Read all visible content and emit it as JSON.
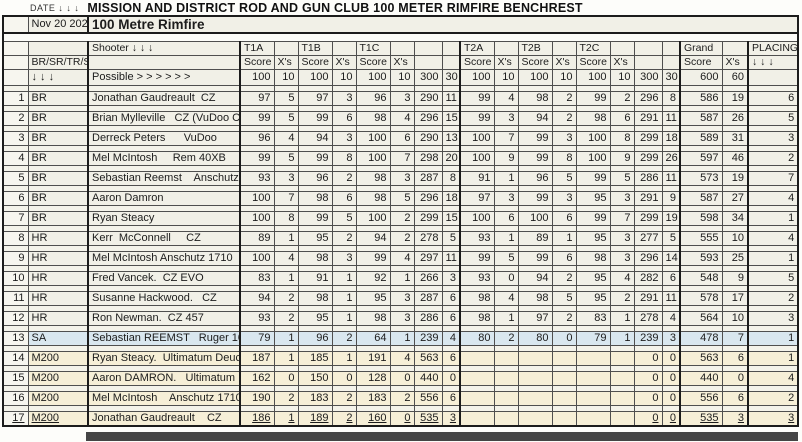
{
  "page": {
    "date_label": "DATE ↓ ↓ ↓",
    "title": "MISSION AND DISTRICT ROD AND GUN CLUB 100 METER RIMFIRE BENCHREST"
  },
  "colors": {
    "row_default": "#f1f0e7",
    "row_sa": "#d9e7ef",
    "row_m200": "#f6efd7",
    "border_dark": "#1c1c1c",
    "bar": "#454545"
  },
  "table": {
    "sheet_date": "Nov 20 2022",
    "sheet_title": "100 Metre Rimfire",
    "header": {
      "shooter_label": "Shooter ↓ ↓ ↓",
      "class_label": "BR/SR/TR/SA",
      "class_arrows": "↓ ↓ ↓",
      "score_label": "Score",
      "xs_label": "X's",
      "groups": [
        "T1A",
        "T1B",
        "T1C",
        "T2A",
        "T2B",
        "T2C"
      ],
      "grand_label": "Grand",
      "placing_label": "PLACING",
      "placing_arrows": "↓ ↓ ↓"
    },
    "possible": {
      "label": "Possible > > > > > >",
      "values": [
        100,
        10,
        100,
        10,
        100,
        10,
        300,
        30,
        100,
        10,
        100,
        10,
        100,
        10,
        300,
        30,
        600,
        60
      ]
    },
    "rows": [
      {
        "num": 1,
        "class": "BR",
        "shooter": "Jonathan Gaudreault  CZ",
        "values": [
          97,
          5,
          97,
          3,
          96,
          3,
          290,
          11,
          99,
          4,
          98,
          2,
          99,
          2,
          296,
          8,
          586,
          19,
          6
        ],
        "tint": "a",
        "underline": false
      },
      {
        "num": 2,
        "class": "BR",
        "shooter": "Brian Mylleville   CZ (VuDoo Clone)",
        "values": [
          99,
          5,
          99,
          6,
          98,
          4,
          296,
          15,
          99,
          3,
          94,
          2,
          98,
          6,
          291,
          11,
          587,
          26,
          5
        ],
        "tint": "a",
        "underline": false
      },
      {
        "num": 3,
        "class": "BR",
        "shooter": "Derreck Peters      VuDoo",
        "values": [
          96,
          4,
          94,
          3,
          100,
          6,
          290,
          13,
          100,
          7,
          99,
          3,
          100,
          8,
          299,
          18,
          589,
          31,
          3
        ],
        "tint": "a",
        "underline": false
      },
      {
        "num": 4,
        "class": "BR",
        "shooter": "Mel McIntosh     Rem 40XB",
        "values": [
          99,
          5,
          99,
          8,
          100,
          7,
          298,
          20,
          100,
          9,
          99,
          8,
          100,
          9,
          299,
          26,
          597,
          46,
          2
        ],
        "tint": "a",
        "underline": false
      },
      {
        "num": 5,
        "class": "BR",
        "shooter": "Sebastian Reemst    Anschutz",
        "values": [
          93,
          3,
          96,
          2,
          98,
          3,
          287,
          8,
          91,
          1,
          96,
          5,
          99,
          5,
          286,
          11,
          573,
          19,
          7
        ],
        "tint": "a",
        "underline": false
      },
      {
        "num": 6,
        "class": "BR",
        "shooter": "Aaron Damron",
        "values": [
          100,
          7,
          98,
          6,
          98,
          5,
          296,
          18,
          97,
          3,
          99,
          3,
          95,
          3,
          291,
          9,
          587,
          27,
          4
        ],
        "tint": "a",
        "underline": false
      },
      {
        "num": 7,
        "class": "BR",
        "shooter": "Ryan Steacy",
        "values": [
          100,
          8,
          99,
          5,
          100,
          2,
          299,
          15,
          100,
          6,
          100,
          6,
          99,
          7,
          299,
          19,
          598,
          34,
          1
        ],
        "tint": "a",
        "underline": false
      },
      {
        "num": 8,
        "class": "HR",
        "shooter": "Kerr  McConnell     CZ",
        "values": [
          89,
          1,
          95,
          2,
          94,
          2,
          278,
          5,
          93,
          1,
          89,
          1,
          95,
          3,
          277,
          5,
          555,
          10,
          4
        ],
        "tint": "a",
        "underline": false
      },
      {
        "num": 9,
        "class": "HR",
        "shooter": "Mel McIntosh Anschutz 1710",
        "values": [
          100,
          4,
          98,
          3,
          99,
          4,
          297,
          11,
          99,
          5,
          99,
          6,
          98,
          3,
          296,
          14,
          593,
          25,
          1
        ],
        "tint": "a",
        "underline": false
      },
      {
        "num": 10,
        "class": "HR",
        "shooter": "Fred Vancek.  CZ EVO",
        "values": [
          83,
          1,
          91,
          1,
          92,
          1,
          266,
          3,
          93,
          0,
          94,
          2,
          95,
          4,
          282,
          6,
          548,
          9,
          5
        ],
        "tint": "a",
        "underline": false
      },
      {
        "num": 11,
        "class": "HR",
        "shooter": "Susanne Hackwood.   CZ",
        "values": [
          94,
          2,
          98,
          1,
          95,
          3,
          287,
          6,
          98,
          4,
          98,
          5,
          95,
          2,
          291,
          11,
          578,
          17,
          2
        ],
        "tint": "a",
        "underline": false
      },
      {
        "num": 12,
        "class": "HR",
        "shooter": "Ron Newman.  CZ 457",
        "values": [
          93,
          2,
          95,
          1,
          98,
          3,
          286,
          6,
          98,
          1,
          97,
          2,
          83,
          1,
          278,
          4,
          564,
          10,
          3
        ],
        "tint": "a",
        "underline": false
      },
      {
        "num": 13,
        "class": "SA",
        "shooter": "Sebastian REEMST   Ruger 10/22",
        "values": [
          79,
          1,
          96,
          2,
          64,
          1,
          239,
          4,
          80,
          2,
          80,
          0,
          79,
          1,
          239,
          3,
          478,
          7,
          1
        ],
        "tint": "b",
        "underline": false
      },
      {
        "num": 14,
        "class": "M200",
        "shooter": "Ryan Steacy.  Ultimatum Deuce",
        "values": [
          187,
          1,
          185,
          1,
          191,
          4,
          563,
          6,
          "",
          "",
          "",
          "",
          "",
          "",
          0,
          0,
          563,
          6,
          1
        ],
        "tint": "c",
        "underline": false
      },
      {
        "num": 15,
        "class": "M200",
        "shooter": "Aaron DAMRON.   Ultimatum Deuce",
        "values": [
          162,
          0,
          150,
          0,
          128,
          0,
          440,
          0,
          "",
          "",
          "",
          "",
          "",
          "",
          0,
          0,
          440,
          0,
          4
        ],
        "tint": "c",
        "underline": false
      },
      {
        "num": 16,
        "class": "M200",
        "shooter": "Mel McIntosh    Anschutz 1710",
        "values": [
          190,
          2,
          183,
          2,
          183,
          2,
          556,
          6,
          "",
          "",
          "",
          "",
          "",
          "",
          0,
          0,
          556,
          6,
          2
        ],
        "tint": "c",
        "underline": false
      },
      {
        "num": 17,
        "class": "M200",
        "shooter": "Jonathan Gaudreault    CZ",
        "values": [
          186,
          1,
          189,
          2,
          160,
          0,
          535,
          3,
          "",
          "",
          "",
          "",
          "",
          "",
          0,
          0,
          535,
          3,
          3
        ],
        "tint": "c",
        "underline": true
      }
    ]
  }
}
